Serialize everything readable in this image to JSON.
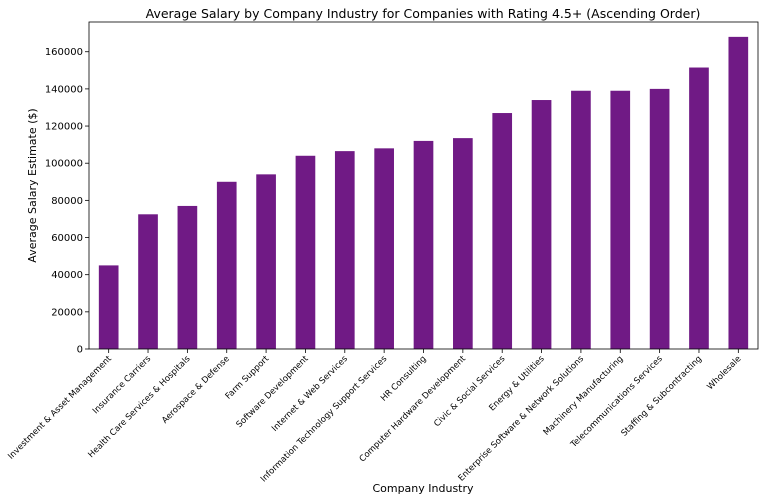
{
  "chart_data": {
    "type": "bar",
    "title": "Average Salary by Company Industry for Companies with Rating 4.5+ (Ascending Order)",
    "xlabel": "Company Industry",
    "ylabel": "Average Salary Estimate ($)",
    "ylim": [
      0,
      176000
    ],
    "yticks": [
      0,
      20000,
      40000,
      60000,
      80000,
      100000,
      120000,
      140000,
      160000
    ],
    "ytick_labels": [
      "0",
      "20000",
      "40000",
      "60000",
      "80000",
      "100000",
      "120000",
      "140000",
      "160000"
    ],
    "grid": false,
    "legend": "none",
    "bar_color": "#701a85",
    "categories": [
      "Investment & Asset Management",
      "Insurance Carriers",
      "Health Care Services & Hospitals",
      "Aerospace & Defense",
      "Farm Support",
      "Software Development",
      "Internet & Web Services",
      "Information Technology Support Services",
      "HR Consulting",
      "Computer Hardware Development",
      "Civic & Social Services",
      "Energy & Utilities",
      "Enterprise Software & Network Solutions",
      "Machinery Manufacturing",
      "Telecommunications Services",
      "Staffing & Subcontracting",
      "Wholesale"
    ],
    "values": [
      45000,
      72500,
      77000,
      90000,
      94000,
      104000,
      106500,
      108000,
      112000,
      113500,
      127000,
      134000,
      139000,
      139000,
      140000,
      151500,
      168000
    ]
  }
}
